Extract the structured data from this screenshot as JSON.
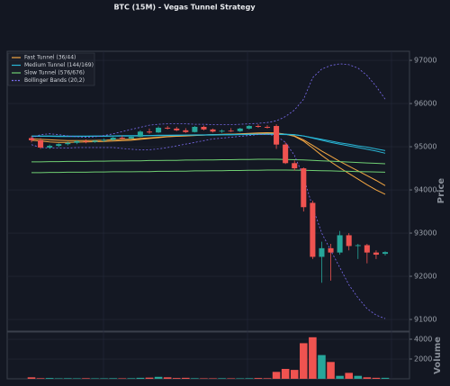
{
  "chart_data": [
    {
      "type": "candlestick",
      "title": "BTC (15M) - Vegas Tunnel Strategy",
      "y_label": "Price",
      "up_color": "#26a69a",
      "down_color": "#ef5350",
      "open": [
        95200,
        95150,
        94980,
        95020,
        95060,
        95090,
        95130,
        95110,
        95140,
        95160,
        95210,
        95190,
        95230,
        95350,
        95330,
        95440,
        95420,
        95380,
        95340,
        95460,
        95400,
        95350,
        95370,
        95360,
        95420,
        95480,
        95460,
        95480,
        95050,
        94620,
        94500,
        93700,
        92450,
        92650,
        92550,
        92950,
        92700,
        92720,
        92550,
        92520
      ],
      "high": [
        95250,
        95200,
        95050,
        95080,
        95120,
        95150,
        95170,
        95160,
        95190,
        95230,
        95260,
        95250,
        95380,
        95420,
        95470,
        95480,
        95460,
        95430,
        95480,
        95490,
        95420,
        95400,
        95430,
        95440,
        95500,
        95520,
        95500,
        95520,
        95100,
        94680,
        94520,
        93750,
        92800,
        92750,
        93050,
        93000,
        92750,
        92750,
        92600,
        92580
      ],
      "low": [
        95100,
        94950,
        94950,
        94990,
        95030,
        95060,
        95080,
        95090,
        95110,
        95140,
        95170,
        95180,
        95220,
        95300,
        95320,
        95400,
        95360,
        95320,
        95330,
        95380,
        95330,
        95320,
        95340,
        95340,
        95400,
        95440,
        95420,
        94950,
        94600,
        94450,
        93500,
        92400,
        91850,
        91900,
        92500,
        92600,
        92400,
        92300,
        92400,
        92480
      ],
      "close": [
        95150,
        94980,
        95020,
        95060,
        95090,
        95130,
        95110,
        95140,
        95160,
        95210,
        95190,
        95230,
        95350,
        95330,
        95440,
        95420,
        95380,
        95340,
        95460,
        95400,
        95350,
        95370,
        95360,
        95420,
        95480,
        95460,
        95440,
        95050,
        94620,
        94500,
        93600,
        92450,
        92650,
        92550,
        92950,
        92700,
        92720,
        92550,
        92500,
        92560
      ],
      "lines": [
        {
          "name": "Fast Tunnel (36/44)",
          "color": "#f5a742",
          "style": "solid",
          "values": [
            95150,
            95130,
            95110,
            95100,
            95100,
            95105,
            95110,
            95115,
            95120,
            95130,
            95140,
            95150,
            95170,
            95190,
            95210,
            95230,
            95240,
            95250,
            95260,
            95270,
            95280,
            95285,
            95290,
            95300,
            95310,
            95320,
            95325,
            95320,
            95290,
            95240,
            95130,
            94970,
            94800,
            94650,
            94510,
            94380,
            94250,
            94120,
            94000,
            93900
          ],
          "values2": [
            95180,
            95170,
            95160,
            95150,
            95140,
            95140,
            95140,
            95145,
            95150,
            95160,
            95170,
            95175,
            95190,
            95205,
            95220,
            95235,
            95245,
            95255,
            95265,
            95270,
            95280,
            95285,
            95290,
            95295,
            95300,
            95310,
            95315,
            95310,
            95290,
            95250,
            95160,
            95030,
            94900,
            94780,
            94660,
            94550,
            94440,
            94330,
            94220,
            94100
          ]
        },
        {
          "name": "Medium Tunnel (144/169)",
          "color": "#29b6d6",
          "style": "solid",
          "values": [
            95250,
            95250,
            95250,
            95245,
            95245,
            95245,
            95245,
            95250,
            95250,
            95250,
            95255,
            95255,
            95260,
            95260,
            95265,
            95265,
            95270,
            95270,
            95275,
            95275,
            95280,
            95280,
            95285,
            95285,
            95290,
            95290,
            95295,
            95295,
            95290,
            95280,
            95250,
            95200,
            95150,
            95100,
            95060,
            95020,
            94980,
            94940,
            94900,
            94850
          ],
          "values2": [
            95240,
            95240,
            95240,
            95235,
            95235,
            95235,
            95240,
            95240,
            95240,
            95245,
            95245,
            95250,
            95250,
            95255,
            95255,
            95260,
            95260,
            95265,
            95265,
            95270,
            95270,
            95275,
            95275,
            95280,
            95280,
            95285,
            95285,
            95285,
            95280,
            95275,
            95250,
            95210,
            95170,
            95130,
            95090,
            95060,
            95020,
            94990,
            94950,
            94910
          ]
        },
        {
          "name": "Slow Tunnel (576/676)",
          "color": "#6fcf73",
          "style": "solid",
          "values": [
            94650,
            94650,
            94655,
            94655,
            94660,
            94660,
            94660,
            94665,
            94665,
            94670,
            94670,
            94675,
            94675,
            94680,
            94680,
            94685,
            94685,
            94690,
            94690,
            94695,
            94695,
            94700,
            94700,
            94705,
            94705,
            94710,
            94710,
            94710,
            94705,
            94700,
            94695,
            94685,
            94675,
            94665,
            94655,
            94645,
            94635,
            94625,
            94615,
            94605
          ],
          "values2": [
            94400,
            94400,
            94405,
            94405,
            94410,
            94410,
            94410,
            94415,
            94415,
            94420,
            94420,
            94420,
            94425,
            94425,
            94430,
            94430,
            94435,
            94435,
            94440,
            94440,
            94445,
            94445,
            94450,
            94450,
            94455,
            94455,
            94460,
            94460,
            94460,
            94458,
            94455,
            94450,
            94445,
            94440,
            94435,
            94430,
            94425,
            94420,
            94415,
            94410
          ]
        },
        {
          "name": "Bollinger Bands (20,2)",
          "color": "#7b6cf0",
          "style": "dashed",
          "values": [
            95200,
            95280,
            95300,
            95280,
            95250,
            95230,
            95220,
            95230,
            95260,
            95300,
            95350,
            95400,
            95450,
            95500,
            95520,
            95530,
            95530,
            95530,
            95520,
            95520,
            95510,
            95510,
            95510,
            95520,
            95530,
            95540,
            95560,
            95600,
            95700,
            95850,
            96100,
            96600,
            96800,
            96880,
            96920,
            96900,
            96820,
            96650,
            96400,
            96100
          ],
          "values2": [
            95050,
            94980,
            94970,
            94970,
            94970,
            94980,
            94980,
            94980,
            94980,
            94980,
            94960,
            94940,
            94930,
            94930,
            94950,
            94980,
            95020,
            95060,
            95100,
            95140,
            95180,
            95200,
            95220,
            95240,
            95260,
            95280,
            95290,
            95250,
            95100,
            94800,
            94300,
            93600,
            93000,
            92600,
            92200,
            91800,
            91500,
            91250,
            91100,
            91020
          ]
        }
      ],
      "ylim": [
        90730,
        97210
      ],
      "yticks": [
        91000,
        92000,
        93000,
        94000,
        95000,
        96000,
        97000
      ],
      "grid": true,
      "legend": "upper left"
    },
    {
      "type": "bar",
      "y_label": "Volume",
      "values": [
        150,
        60,
        80,
        50,
        60,
        50,
        60,
        50,
        50,
        60,
        50,
        60,
        100,
        120,
        200,
        150,
        80,
        100,
        60,
        50,
        50,
        60,
        50,
        50,
        60,
        80,
        60,
        700,
        1000,
        900,
        3600,
        4200,
        2400,
        1700,
        300,
        600,
        300,
        150,
        100,
        100
      ],
      "ylim": [
        0,
        4730
      ],
      "yticks": [
        2000,
        4000
      ],
      "grid": true
    }
  ]
}
